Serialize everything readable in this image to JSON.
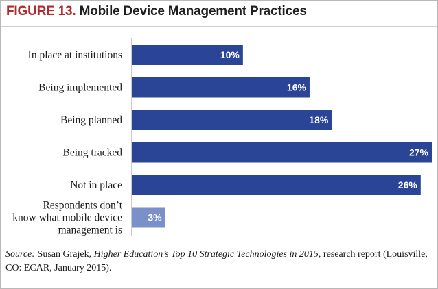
{
  "figure": {
    "number_label": "FIGURE 13.",
    "title": "Mobile Device Management Practices"
  },
  "colors": {
    "figure_label": "#b22a2e",
    "bar": "#2a4595",
    "bar_highlight": "#7a90c8"
  },
  "chart_data": {
    "type": "bar",
    "orientation": "horizontal",
    "title": "Mobile Device Management Practices",
    "categories": [
      "In place at institutions",
      "Being implemented",
      "Being planned",
      "Being tracked",
      "Not in place",
      "Respondents don't know what mobile device management is"
    ],
    "category_label_lines": [
      [
        "In place at institutions"
      ],
      [
        "Being implemented"
      ],
      [
        "Being planned"
      ],
      [
        "Being tracked"
      ],
      [
        "Not in place"
      ],
      [
        "Respondents don’t",
        "know what mobile device",
        "management is"
      ]
    ],
    "values": [
      10,
      16,
      18,
      27,
      26,
      3
    ],
    "value_labels": [
      "10%",
      "16%",
      "18%",
      "27%",
      "26%",
      "3%"
    ],
    "unit": "%",
    "xlim": [
      0,
      27
    ],
    "grid": false,
    "legend": "none"
  },
  "source": {
    "label": "Source:",
    "author": " Susan Grajek, ",
    "work": "Higher Education’s Top 10 Strategic Technologies in 2015",
    "rest": ", research report (Louisville, CO: ECAR, January 2015)."
  }
}
